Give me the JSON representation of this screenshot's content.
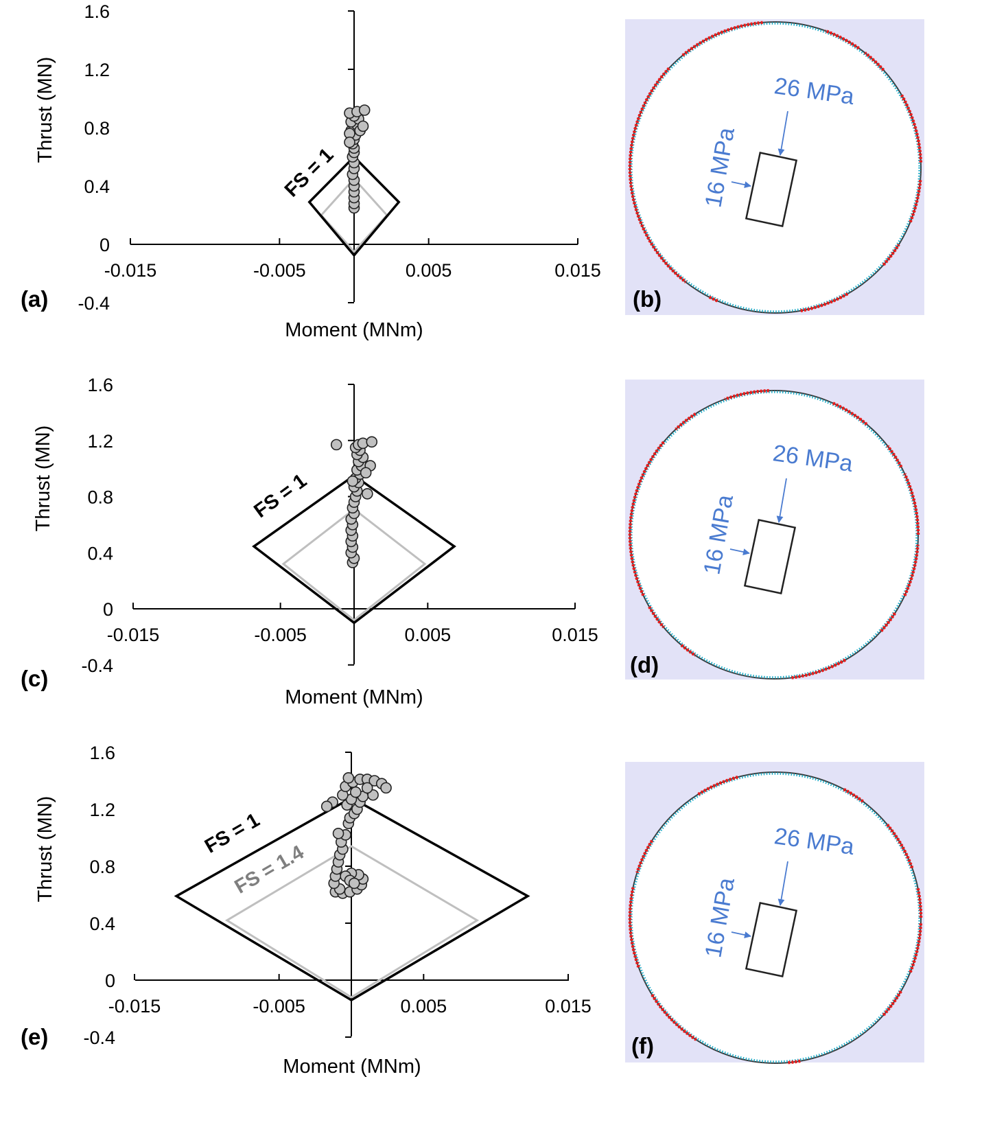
{
  "chart_data": [
    {
      "panel": "(a)",
      "type": "scatter",
      "xlabel": "Moment (MNm)",
      "ylabel": "Thrust (MN)",
      "xlim": [
        -0.015,
        0.015
      ],
      "ylim": [
        -0.4,
        1.6
      ],
      "xticks": [
        "-0.015",
        "-0.005",
        "0.005",
        "0.015"
      ],
      "yticks": [
        "-0.4",
        "0",
        "0.4",
        "0.8",
        "1.2",
        "1.6"
      ],
      "envelopes": [
        {
          "name": "FS = 1",
          "label": "FS = 1",
          "color": "#000000",
          "points": [
            [
              -0.003,
              0.29
            ],
            [
              0,
              0.6
            ],
            [
              0.003,
              0.29
            ],
            [
              0,
              -0.075
            ]
          ]
        },
        {
          "name": "FS = 1.4",
          "label": "",
          "color": "#bfbfbf",
          "points": [
            [
              -0.0022,
              0.2
            ],
            [
              0,
              0.45
            ],
            [
              0.0022,
              0.2
            ],
            [
              0,
              -0.05
            ]
          ]
        }
      ],
      "points": [
        [
          0,
          0.25
        ],
        [
          0,
          0.28
        ],
        [
          0,
          0.32
        ],
        [
          0,
          0.36
        ],
        [
          0,
          0.4
        ],
        [
          0,
          0.44
        ],
        [
          -0.0001,
          0.48
        ],
        [
          0,
          0.52
        ],
        [
          0,
          0.56
        ],
        [
          -0.0001,
          0.6
        ],
        [
          0,
          0.63
        ],
        [
          0,
          0.66
        ],
        [
          -0.0001,
          0.69
        ],
        [
          0,
          0.72
        ],
        [
          0.0001,
          0.75
        ],
        [
          -0.0002,
          0.78
        ],
        [
          0,
          0.8
        ],
        [
          0.0002,
          0.82
        ],
        [
          -0.0002,
          0.84
        ],
        [
          0.0003,
          0.86
        ],
        [
          0,
          0.88
        ],
        [
          -0.0003,
          0.9
        ],
        [
          0.0002,
          0.91
        ],
        [
          0.0007,
          0.92
        ],
        [
          0.0004,
          0.78
        ],
        [
          0.0006,
          0.81
        ],
        [
          -0.0003,
          0.76
        ],
        [
          -0.0003,
          0.7
        ]
      ]
    },
    {
      "panel": "(c)",
      "type": "scatter",
      "xlabel": "Moment (MNm)",
      "ylabel": "Thrust (MN)",
      "xlim": [
        -0.015,
        0.015
      ],
      "ylim": [
        -0.4,
        1.6
      ],
      "xticks": [
        "-0.015",
        "-0.005",
        "0.005",
        "0.015"
      ],
      "yticks": [
        "-0.4",
        "0",
        "0.4",
        "0.8",
        "1.2",
        "1.6"
      ],
      "envelopes": [
        {
          "name": "FS = 1",
          "label": "FS = 1",
          "color": "#000000",
          "points": [
            [
              -0.0068,
              0.445
            ],
            [
              0,
              0.95
            ],
            [
              0.0068,
              0.445
            ],
            [
              0,
              -0.1
            ]
          ]
        },
        {
          "name": "FS = 1.4",
          "label": "",
          "color": "#bfbfbf",
          "points": [
            [
              -0.0048,
              0.32
            ],
            [
              0,
              0.71
            ],
            [
              0.0048,
              0.32
            ],
            [
              0,
              -0.08
            ]
          ]
        }
      ],
      "points": [
        [
          -0.0001,
          0.33
        ],
        [
          0,
          0.36
        ],
        [
          -0.0002,
          0.4
        ],
        [
          -0.0001,
          0.44
        ],
        [
          -0.0002,
          0.48
        ],
        [
          -0.0001,
          0.52
        ],
        [
          -0.0002,
          0.56
        ],
        [
          -0.0001,
          0.6
        ],
        [
          -0.0002,
          0.64
        ],
        [
          0,
          0.68
        ],
        [
          -0.0001,
          0.72
        ],
        [
          0,
          0.76
        ],
        [
          0.0001,
          0.8
        ],
        [
          0.0002,
          0.84
        ],
        [
          0,
          0.87
        ],
        [
          0.0003,
          0.9
        ],
        [
          0.0001,
          0.93
        ],
        [
          0.0004,
          0.96
        ],
        [
          0.0002,
          0.99
        ],
        [
          0.0005,
          1.02
        ],
        [
          0.0003,
          1.05
        ],
        [
          0.0006,
          1.08
        ],
        [
          0.0002,
          1.1
        ],
        [
          0.0004,
          1.13
        ],
        [
          0.0001,
          1.15
        ],
        [
          0.0003,
          1.17
        ],
        [
          0.0006,
          1.18
        ],
        [
          -0.0012,
          1.17
        ],
        [
          0.0012,
          1.19
        ],
        [
          0.0009,
          0.82
        ],
        [
          0.0011,
          1.02
        ],
        [
          0.0008,
          0.97
        ],
        [
          -0.0001,
          0.91
        ]
      ]
    },
    {
      "panel": "(e)",
      "type": "scatter",
      "xlabel": "Moment (MNm)",
      "ylabel": "Thrust (MN)",
      "xlim": [
        -0.015,
        0.015
      ],
      "ylim": [
        -0.4,
        1.6
      ],
      "xticks": [
        "-0.015",
        "-0.005",
        "0.005",
        "0.015"
      ],
      "yticks": [
        "-0.4",
        "0",
        "0.4",
        "0.8",
        "1.2",
        "1.6"
      ],
      "envelopes": [
        {
          "name": "FS = 1",
          "label": "FS = 1",
          "color": "#000000",
          "points": [
            [
              -0.0121,
              0.59
            ],
            [
              0,
              1.28
            ],
            [
              0.0122,
              0.59
            ],
            [
              0,
              -0.14
            ]
          ]
        },
        {
          "name": "FS = 1.4",
          "label": "FS = 1.4",
          "color": "#bfbfbf",
          "points": [
            [
              -0.0086,
              0.42
            ],
            [
              0,
              0.94
            ],
            [
              0.0087,
              0.42
            ],
            [
              0,
              -0.12
            ]
          ]
        }
      ],
      "points": [
        [
          -0.0011,
          0.62
        ],
        [
          -0.0006,
          0.61
        ],
        [
          -0.0001,
          0.62
        ],
        [
          0.0004,
          0.64
        ],
        [
          0.0007,
          0.67
        ],
        [
          0.0008,
          0.71
        ],
        [
          0.0005,
          0.74
        ],
        [
          0,
          0.75
        ],
        [
          -0.0004,
          0.73
        ],
        [
          -0.0001,
          0.7
        ],
        [
          0.0002,
          0.68
        ],
        [
          -0.0008,
          0.64
        ],
        [
          -0.0012,
          0.68
        ],
        [
          -0.0011,
          0.73
        ],
        [
          -0.001,
          0.78
        ],
        [
          -0.0009,
          0.83
        ],
        [
          -0.0008,
          0.88
        ],
        [
          -0.0006,
          0.92
        ],
        [
          -0.0007,
          0.97
        ],
        [
          -0.0004,
          1.02
        ],
        [
          -0.0009,
          1.03
        ],
        [
          -0.0002,
          1.1
        ],
        [
          -0.0001,
          1.14
        ],
        [
          0.0002,
          1.17
        ],
        [
          0.0004,
          1.2
        ],
        [
          -0.0003,
          1.23
        ],
        [
          0.0006,
          1.25
        ],
        [
          0,
          1.27
        ],
        [
          0.0008,
          1.29
        ],
        [
          -0.0006,
          1.3
        ],
        [
          0.0003,
          1.32
        ],
        [
          -0.0013,
          1.25
        ],
        [
          -0.0017,
          1.22
        ],
        [
          -0.0004,
          1.36
        ],
        [
          0.0001,
          1.39
        ],
        [
          0.0006,
          1.41
        ],
        [
          0.0011,
          1.41
        ],
        [
          0.0016,
          1.4
        ],
        [
          0.0021,
          1.38
        ],
        [
          0.0024,
          1.35
        ],
        [
          0.0015,
          1.3
        ],
        [
          0.0011,
          1.35
        ],
        [
          -0.0002,
          1.42
        ]
      ]
    }
  ],
  "circles": [
    {
      "panel": "(b)",
      "label_top": "26 MPa",
      "label_side": "16 MPa",
      "red_segments_deg": [
        [
          95,
          130
        ],
        [
          137,
          232
        ],
        [
          243,
          247
        ],
        [
          280,
          300
        ],
        [
          318,
          328
        ],
        [
          338,
          355
        ],
        [
          2,
          30
        ],
        [
          42,
          52
        ],
        [
          55,
          70
        ]
      ]
    },
    {
      "panel": "(d)",
      "label_top": "26 MPa",
      "label_side": "16 MPa",
      "red_segments_deg": [
        [
          92,
          110
        ],
        [
          123,
          133
        ],
        [
          140,
          205
        ],
        [
          210,
          220
        ],
        [
          230,
          237
        ],
        [
          277,
          300
        ],
        [
          318,
          327
        ],
        [
          335,
          356
        ],
        [
          0,
          25
        ],
        [
          28,
          38
        ],
        [
          50,
          66
        ]
      ]
    },
    {
      "panel": "(f)",
      "label_top": "26 MPa",
      "label_side": "16 MPa",
      "red_segments_deg": [
        [
          105,
          122
        ],
        [
          148,
          162
        ],
        [
          168,
          200
        ],
        [
          212,
          237
        ],
        [
          275,
          280
        ],
        [
          318,
          330
        ],
        [
          338,
          358
        ],
        [
          0,
          12
        ],
        [
          20,
          40
        ],
        [
          53,
          62
        ]
      ]
    }
  ],
  "colors": {
    "background_panel": "#e2e2f7",
    "dotted": "#1aa9c6",
    "red": "#ee1c1c",
    "annotation": "#4a7bd0",
    "points": "#c0c0c0"
  }
}
